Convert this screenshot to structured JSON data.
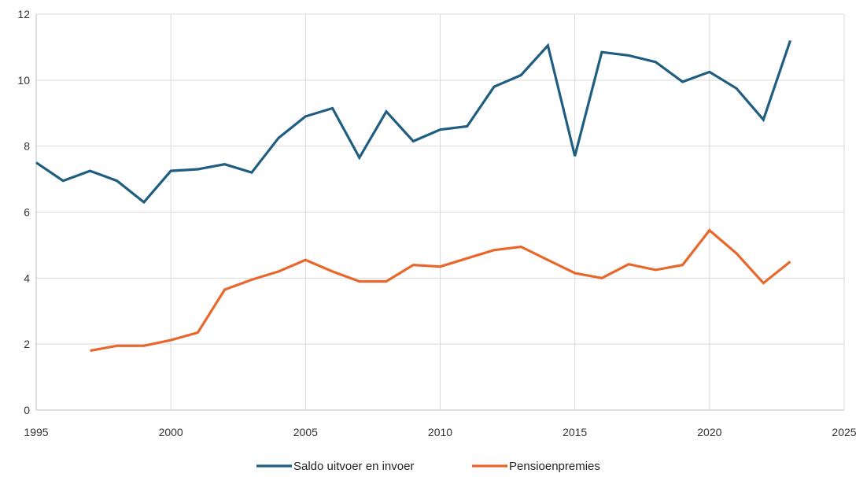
{
  "chart_data": {
    "type": "line",
    "title": "",
    "xlabel": "",
    "ylabel": "",
    "xlim": [
      1995,
      2025
    ],
    "ylim": [
      0,
      12
    ],
    "xticks": [
      1995,
      2000,
      2005,
      2010,
      2015,
      2020,
      2025
    ],
    "yticks": [
      0,
      2,
      4,
      6,
      8,
      10,
      12
    ],
    "grid": true,
    "legend_position": "bottom",
    "series": [
      {
        "name": "Saldo uitvoer en invoer",
        "color": "#1f5e80",
        "points": [
          [
            1995,
            7.5
          ],
          [
            1996,
            6.95
          ],
          [
            1997,
            7.25
          ],
          [
            1998,
            6.95
          ],
          [
            1999,
            6.3
          ],
          [
            2000,
            7.25
          ],
          [
            2001,
            7.3
          ],
          [
            2002,
            7.45
          ],
          [
            2003,
            7.2
          ],
          [
            2004,
            8.25
          ],
          [
            2005,
            8.9
          ],
          [
            2006,
            9.15
          ],
          [
            2007,
            7.65
          ],
          [
            2008,
            9.05
          ],
          [
            2009,
            8.15
          ],
          [
            2010,
            8.5
          ],
          [
            2011,
            8.6
          ],
          [
            2012,
            9.8
          ],
          [
            2013,
            10.15
          ],
          [
            2014,
            11.05
          ],
          [
            2015,
            7.7
          ],
          [
            2016,
            10.85
          ],
          [
            2017,
            10.75
          ],
          [
            2018,
            10.55
          ],
          [
            2019,
            9.95
          ],
          [
            2020,
            10.25
          ],
          [
            2021,
            9.75
          ],
          [
            2022,
            8.8
          ],
          [
            2023,
            11.2
          ]
        ]
      },
      {
        "name": "Pensioenpremies",
        "color": "#e8682b",
        "points": [
          [
            1997,
            1.8
          ],
          [
            1998,
            1.95
          ],
          [
            1999,
            1.95
          ],
          [
            2000,
            2.12
          ],
          [
            2001,
            2.35
          ],
          [
            2002,
            3.65
          ],
          [
            2003,
            3.95
          ],
          [
            2004,
            4.2
          ],
          [
            2005,
            4.55
          ],
          [
            2006,
            4.2
          ],
          [
            2007,
            3.9
          ],
          [
            2008,
            3.9
          ],
          [
            2009,
            4.4
          ],
          [
            2010,
            4.35
          ],
          [
            2011,
            4.6
          ],
          [
            2012,
            4.85
          ],
          [
            2013,
            4.95
          ],
          [
            2014,
            4.55
          ],
          [
            2015,
            4.15
          ],
          [
            2016,
            4.0
          ],
          [
            2017,
            4.42
          ],
          [
            2018,
            4.25
          ],
          [
            2019,
            4.4
          ],
          [
            2020,
            5.45
          ],
          [
            2021,
            4.75
          ],
          [
            2022,
            3.85
          ],
          [
            2023,
            4.5
          ]
        ]
      }
    ]
  }
}
